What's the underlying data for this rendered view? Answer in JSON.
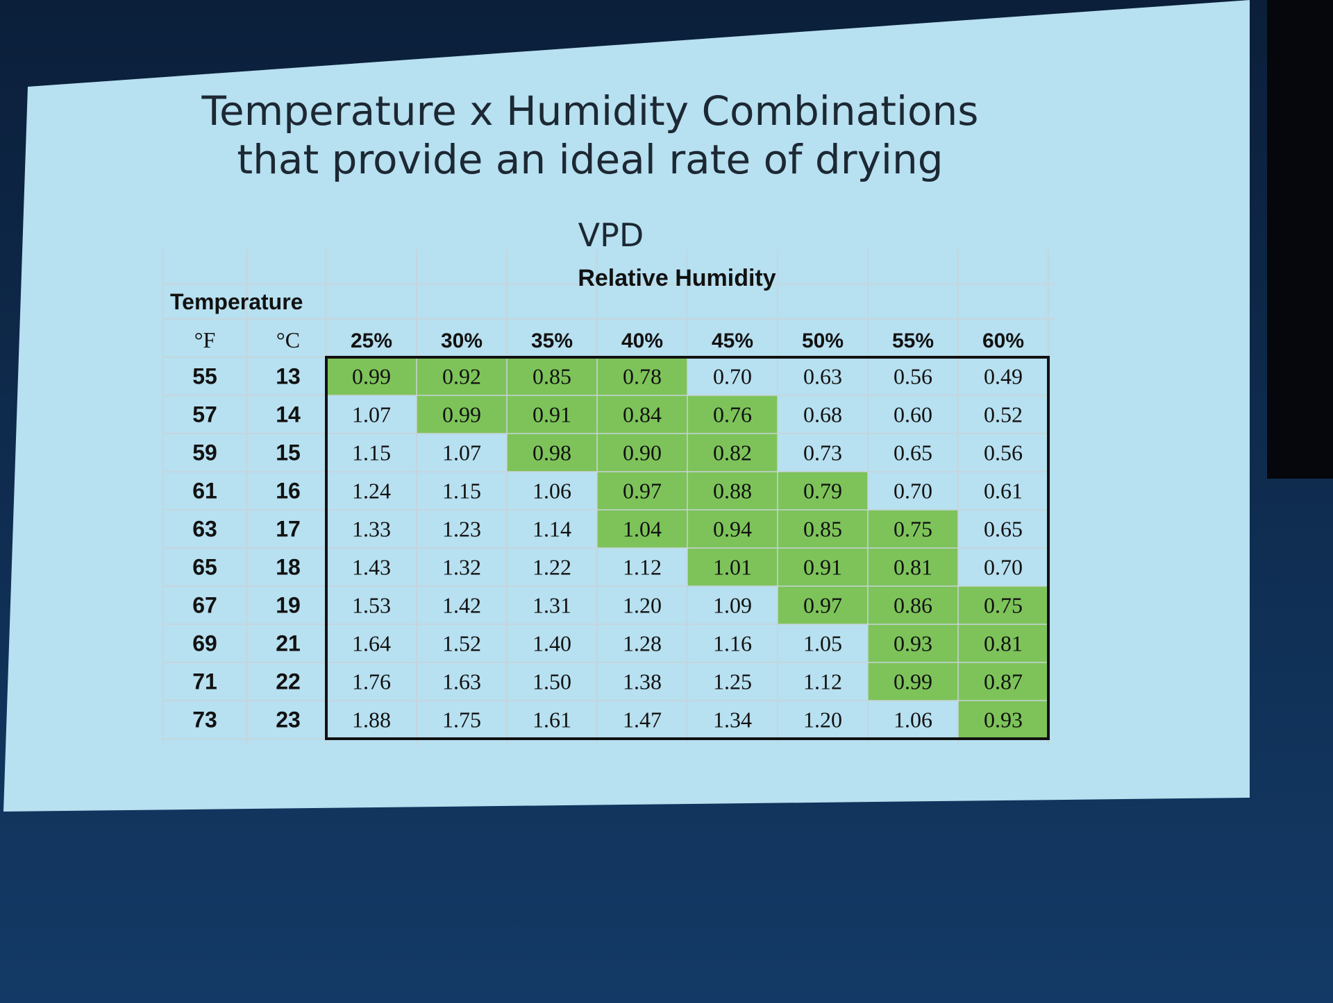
{
  "slide": {
    "title": [
      "Temperature x Humidity Combinations",
      "that provide an ideal rate of drying"
    ],
    "subtitle": "VPD",
    "table": {
      "group_header": "Relative Humidity",
      "row_header": "Temperature",
      "unit_headers": [
        "°F",
        "°C"
      ],
      "columns": [
        "25%",
        "30%",
        "35%",
        "40%",
        "45%",
        "50%",
        "55%",
        "60%"
      ],
      "highlight_color": "#7dc35a",
      "rows": [
        {
          "f": "55",
          "c": "13",
          "values": [
            "0.99",
            "0.92",
            "0.85",
            "0.78",
            "0.70",
            "0.63",
            "0.56",
            "0.49"
          ],
          "highlight": [
            true,
            true,
            true,
            true,
            false,
            false,
            false,
            false
          ]
        },
        {
          "f": "57",
          "c": "14",
          "values": [
            "1.07",
            "0.99",
            "0.91",
            "0.84",
            "0.76",
            "0.68",
            "0.60",
            "0.52"
          ],
          "highlight": [
            false,
            true,
            true,
            true,
            true,
            false,
            false,
            false
          ]
        },
        {
          "f": "59",
          "c": "15",
          "values": [
            "1.15",
            "1.07",
            "0.98",
            "0.90",
            "0.82",
            "0.73",
            "0.65",
            "0.56"
          ],
          "highlight": [
            false,
            false,
            true,
            true,
            true,
            false,
            false,
            false
          ]
        },
        {
          "f": "61",
          "c": "16",
          "values": [
            "1.24",
            "1.15",
            "1.06",
            "0.97",
            "0.88",
            "0.79",
            "0.70",
            "0.61"
          ],
          "highlight": [
            false,
            false,
            false,
            true,
            true,
            true,
            false,
            false
          ]
        },
        {
          "f": "63",
          "c": "17",
          "values": [
            "1.33",
            "1.23",
            "1.14",
            "1.04",
            "0.94",
            "0.85",
            "0.75",
            "0.65"
          ],
          "highlight": [
            false,
            false,
            false,
            true,
            true,
            true,
            true,
            false
          ]
        },
        {
          "f": "65",
          "c": "18",
          "values": [
            "1.43",
            "1.32",
            "1.22",
            "1.12",
            "1.01",
            "0.91",
            "0.81",
            "0.70"
          ],
          "highlight": [
            false,
            false,
            false,
            false,
            true,
            true,
            true,
            false
          ]
        },
        {
          "f": "67",
          "c": "19",
          "values": [
            "1.53",
            "1.42",
            "1.31",
            "1.20",
            "1.09",
            "0.97",
            "0.86",
            "0.75"
          ],
          "highlight": [
            false,
            false,
            false,
            false,
            false,
            true,
            true,
            true
          ]
        },
        {
          "f": "69",
          "c": "21",
          "values": [
            "1.64",
            "1.52",
            "1.40",
            "1.28",
            "1.16",
            "1.05",
            "0.93",
            "0.81"
          ],
          "highlight": [
            false,
            false,
            false,
            false,
            false,
            false,
            true,
            true
          ]
        },
        {
          "f": "71",
          "c": "22",
          "values": [
            "1.76",
            "1.63",
            "1.50",
            "1.38",
            "1.25",
            "1.12",
            "0.99",
            "0.87"
          ],
          "highlight": [
            false,
            false,
            false,
            false,
            false,
            false,
            true,
            true
          ]
        },
        {
          "f": "73",
          "c": "23",
          "values": [
            "1.88",
            "1.75",
            "1.61",
            "1.47",
            "1.34",
            "1.20",
            "1.06",
            "0.93"
          ],
          "highlight": [
            false,
            false,
            false,
            false,
            false,
            false,
            false,
            true
          ]
        }
      ]
    }
  }
}
